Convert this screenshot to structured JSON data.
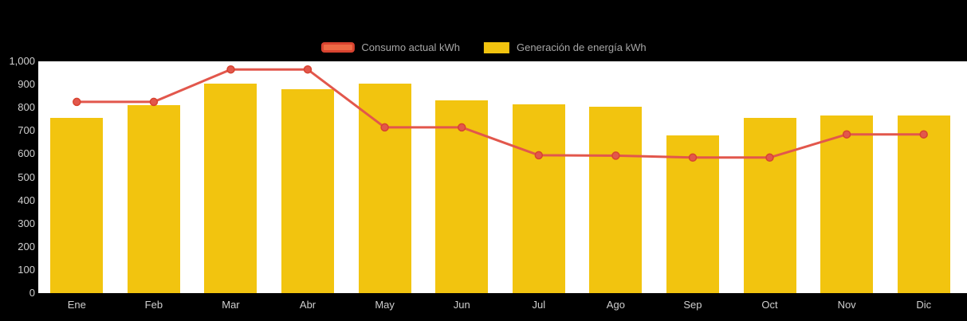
{
  "chart_data": {
    "type": "bar+line",
    "title": "",
    "categories": [
      "Ene",
      "Feb",
      "Mar",
      "Abr",
      "May",
      "Jun",
      "Jul",
      "Ago",
      "Sep",
      "Oct",
      "Nov",
      "Dic"
    ],
    "series": [
      {
        "name": "Generación de energía kWh",
        "type": "bar",
        "color": "#F2C40F",
        "values": [
          755,
          810,
          905,
          880,
          905,
          830,
          815,
          805,
          680,
          755,
          765,
          765
        ]
      },
      {
        "name": "Consumo actual kWh",
        "type": "line",
        "color": "#E2574C",
        "point_border_color": "#D84330",
        "legend_fill": "#ED6A45",
        "legend_border": "#D84330",
        "values": [
          825,
          825,
          965,
          965,
          715,
          715,
          595,
          593,
          585,
          585,
          685,
          685
        ]
      }
    ],
    "xlabel": "",
    "ylabel": "",
    "ylim": [
      0,
      1000
    ],
    "ytick_step": 100,
    "ytick_labels": [
      "0",
      "100",
      "200",
      "300",
      "400",
      "500",
      "600",
      "700",
      "800",
      "900",
      "1,000"
    ],
    "legend_position": "top",
    "grid": false,
    "plot_background": "#ffffff",
    "page_background": "#000000",
    "tick_label_color": "#cfcfcf",
    "legend_label_color": "#a6a6a6"
  }
}
